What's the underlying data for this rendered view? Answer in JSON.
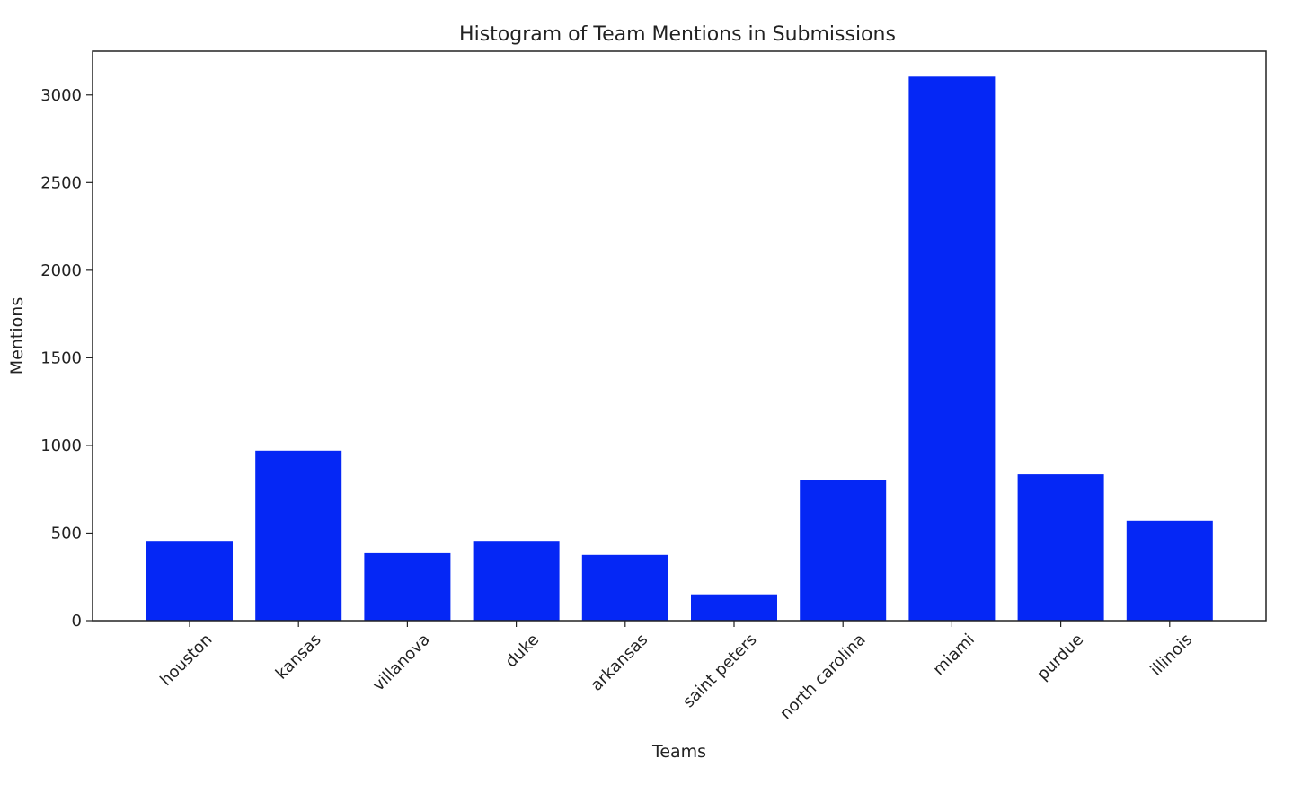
{
  "chart_data": {
    "type": "bar",
    "title": "Histogram of Team Mentions in Submissions",
    "xlabel": "Teams",
    "ylabel": "Mentions",
    "categories": [
      "houston",
      "kansas",
      "villanova",
      "duke",
      "arkansas",
      "saint peters",
      "north carolina",
      "miami",
      "purdue",
      "illinois"
    ],
    "values": [
      455,
      970,
      385,
      455,
      375,
      150,
      805,
      3105,
      835,
      570
    ],
    "ylim": [
      0,
      3250
    ],
    "yticks": [
      0,
      500,
      1000,
      1500,
      2000,
      2500,
      3000
    ],
    "grid": false,
    "legend": "none",
    "bar_color": "#0527f5",
    "xtick_rotation": 45
  }
}
